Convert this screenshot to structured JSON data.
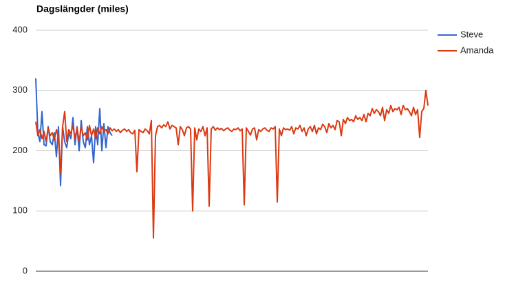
{
  "chart_data": {
    "type": "line",
    "title": "Dagslängder (miles)",
    "ylim": [
      0,
      400
    ],
    "yticks": [
      0,
      100,
      200,
      300,
      400
    ],
    "grid": true,
    "legend": "right",
    "series": [
      {
        "name": "Steve",
        "color": "#3366cc",
        "values": [
          320,
          230,
          215,
          265,
          210,
          208,
          240,
          215,
          210,
          230,
          190,
          240,
          142,
          240,
          215,
          205,
          230,
          220,
          255,
          210,
          240,
          200,
          250,
          215,
          205,
          240,
          210,
          225,
          180,
          240,
          210,
          270,
          200,
          245,
          205,
          240,
          230,
          225
        ]
      },
      {
        "name": "Amanda",
        "color": "#dc3912",
        "values": [
          248,
          225,
          235,
          220,
          232,
          215,
          238,
          225,
          230,
          218,
          235,
          222,
          163,
          240,
          265,
          215,
          235,
          228,
          242,
          220,
          238,
          215,
          240,
          225,
          230,
          218,
          242,
          225,
          236,
          220,
          238,
          228,
          240,
          232,
          235,
          228,
          238,
          233,
          236,
          232,
          235,
          230,
          234,
          236,
          232,
          235,
          230,
          228,
          234,
          165,
          235,
          232,
          230,
          236,
          233,
          228,
          250,
          55,
          225,
          240,
          242,
          238,
          243,
          240,
          248,
          236,
          242,
          240,
          238,
          210,
          240,
          235,
          225,
          238,
          240,
          236,
          100,
          238,
          218,
          236,
          232,
          240,
          225,
          238,
          108,
          236,
          240,
          234,
          238,
          235,
          237,
          233,
          236,
          238,
          234,
          232,
          236,
          235,
          238,
          233,
          236,
          110,
          238,
          232,
          226,
          236,
          238,
          218,
          235,
          232,
          236,
          238,
          234,
          232,
          238,
          236,
          240,
          115,
          236,
          225,
          238,
          235,
          236,
          234,
          240,
          228,
          238,
          236,
          242,
          232,
          238,
          225,
          236,
          240,
          232,
          242,
          228,
          238,
          235,
          244,
          240,
          230,
          245,
          238,
          242,
          235,
          250,
          248,
          225,
          252,
          245,
          255,
          250,
          252,
          248,
          258,
          252,
          255,
          250,
          260,
          248,
          262,
          258,
          270,
          262,
          268,
          265,
          258,
          272,
          250,
          268,
          262,
          275,
          265,
          270,
          268,
          272,
          260,
          275,
          268,
          270,
          265,
          258,
          272,
          260,
          268,
          222,
          265,
          270,
          300,
          275
        ]
      }
    ]
  }
}
